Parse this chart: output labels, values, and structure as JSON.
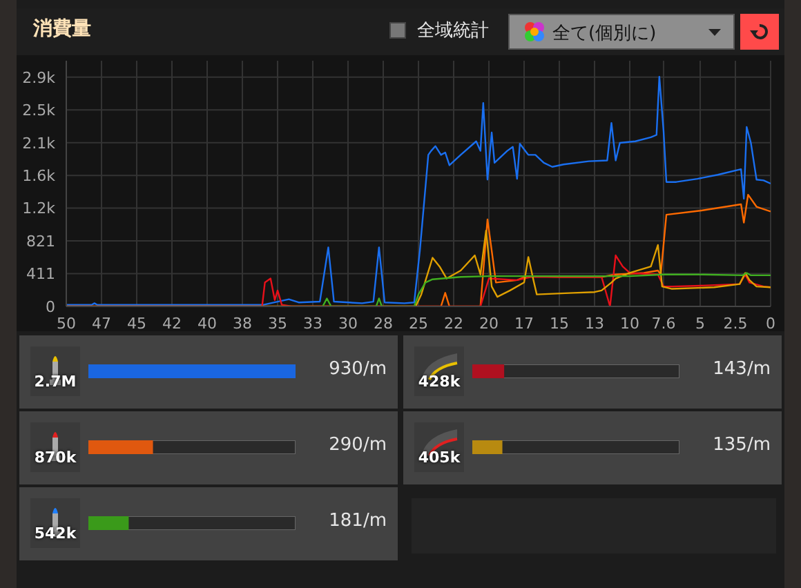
{
  "chart_data": [
    {
      "type": "line",
      "title": "消費量",
      "annotations": [
        "全域統計",
        "全て(個別に)"
      ],
      "xlim": [
        50,
        0
      ],
      "xticks": [
        50,
        {
          "value": 47.5,
          "label": "47"
        },
        45,
        {
          "value": 42.5,
          "label": "42"
        },
        40,
        {
          "value": 37.5,
          "label": "38"
        },
        35,
        {
          "value": 32.5,
          "label": "33"
        },
        30,
        {
          "value": 27.5,
          "label": "28"
        },
        25,
        {
          "value": 22.5,
          "label": "22"
        },
        20,
        {
          "value": 17.5,
          "label": "17"
        },
        15,
        {
          "value": 12.5,
          "label": "13"
        },
        10,
        7.6,
        5,
        2.5,
        0
      ],
      "ylim": [
        0,
        3080
      ],
      "yticks": [
        0,
        411,
        821,
        {
          "value": 1232,
          "label": "1.2k"
        },
        {
          "value": 1642,
          "label": "1.6k"
        },
        {
          "value": 2053,
          "label": "2.1k"
        },
        {
          "value": 2463,
          "label": "2.5k"
        },
        {
          "value": 2874,
          "label": "2.9k"
        }
      ],
      "grid": true,
      "series": [
        {
          "color": "#1a6ff0",
          "x": [
            50,
            48.2,
            48,
            47.8,
            36,
            35,
            34.2,
            33.5,
            32,
            31.4,
            31,
            29,
            28.2,
            27.8,
            27.4,
            26,
            25.3,
            24.9,
            24.3,
            24.1,
            23.8,
            23.4,
            23.1,
            22.8,
            22,
            20.9,
            20.6,
            20.4,
            20.1,
            19.8,
            19.6,
            18.7,
            18.3,
            18,
            17.8,
            17.2,
            16.7,
            16.1,
            15.5,
            14.7,
            12.9,
            11.6,
            11.3,
            11,
            10.7,
            9.6,
            8.5,
            8.1,
            7.9,
            7.6,
            7.4,
            6.7,
            5.2,
            3.75,
            2.1,
            1.9,
            1.7,
            1.4,
            1,
            0.5,
            0
          ],
          "values": [
            20,
            20,
            40,
            20,
            20,
            60,
            90,
            50,
            60,
            740,
            60,
            40,
            60,
            740,
            50,
            40,
            50,
            700,
            1900,
            1950,
            2010,
            1900,
            1930,
            1770,
            1900,
            2070,
            1950,
            2550,
            1590,
            2180,
            1800,
            1950,
            2000,
            1600,
            2040,
            1900,
            1900,
            1800,
            1750,
            1780,
            1820,
            1830,
            2300,
            1830,
            2050,
            2070,
            2120,
            2150,
            2880,
            2200,
            1560,
            1560,
            1600,
            1650,
            1720,
            1350,
            2250,
            2050,
            1590,
            1580,
            1540
          ]
        },
        {
          "color": "#ff6a00",
          "x": [
            50,
            23.4,
            23.1,
            22.8,
            20.6,
            20.1,
            19.8,
            19.5,
            18,
            17.3,
            15,
            12,
            11,
            9,
            8,
            7.8,
            7.4,
            5,
            2.1,
            1.9,
            1.6,
            1,
            0
          ],
          "values": [
            0,
            0,
            170,
            0,
            0,
            1090,
            700,
            300,
            330,
            380,
            370,
            370,
            400,
            420,
            450,
            400,
            1150,
            1200,
            1280,
            1050,
            1400,
            1250,
            1190
          ]
        },
        {
          "color": "#e8101a",
          "x": [
            50,
            36.1,
            35.9,
            35.5,
            35.2,
            35,
            34.7,
            34,
            20.6,
            20,
            18,
            17,
            15,
            12,
            11.4,
            11,
            10.5,
            10,
            8,
            7.6,
            7,
            5,
            2.2,
            1.8,
            1.5,
            0.5,
            0
          ],
          "values": [
            0,
            0,
            300,
            350,
            80,
            200,
            20,
            0,
            0,
            350,
            330,
            370,
            370,
            370,
            0,
            640,
            500,
            420,
            400,
            250,
            250,
            260,
            280,
            400,
            300,
            250,
            240
          ]
        },
        {
          "color": "#e0a000",
          "x": [
            50,
            25.2,
            24.8,
            24,
            23.5,
            23,
            22,
            21,
            20.6,
            20.2,
            19.8,
            19.4,
            18.5,
            17.5,
            17.2,
            16.8,
            16.6,
            14,
            12.5,
            12,
            11.3,
            11,
            10,
            8.5,
            8,
            7.7,
            7,
            4,
            2.2,
            1.8,
            1.5,
            1,
            0
          ],
          "values": [
            0,
            0,
            150,
            610,
            500,
            350,
            450,
            640,
            400,
            950,
            250,
            120,
            200,
            300,
            620,
            300,
            150,
            170,
            180,
            200,
            300,
            350,
            420,
            500,
            770,
            250,
            220,
            240,
            280,
            420,
            330,
            250,
            240
          ]
        },
        {
          "color": "#40b020",
          "x": [
            31.8,
            31.5,
            31.2,
            28,
            27.8,
            27.6,
            25.3,
            25,
            24.5,
            24,
            22,
            20,
            15,
            10,
            7.6,
            5,
            2,
            1.7,
            1.4,
            0
          ],
          "values": [
            0,
            100,
            0,
            0,
            100,
            0,
            0,
            150,
            300,
            340,
            370,
            380,
            380,
            380,
            400,
            400,
            390,
            420,
            390,
            390
          ]
        }
      ]
    },
    {
      "type": "bar",
      "orientation": "horizontal",
      "categories": [
        "2.7M",
        "870k",
        "542k"
      ],
      "values": [
        930,
        290,
        181
      ],
      "colors": [
        "#1a66e0",
        "#e0580f",
        "#3a9a1a"
      ],
      "value_labels": [
        "930/m",
        "290/m",
        "181/m"
      ]
    },
    {
      "type": "bar",
      "orientation": "horizontal",
      "categories": [
        "428k",
        "405k"
      ],
      "values": [
        143,
        135
      ],
      "colors": [
        "#b01020",
        "#b88a10"
      ],
      "value_labels": [
        "143/m",
        "135/m"
      ]
    }
  ]
}
